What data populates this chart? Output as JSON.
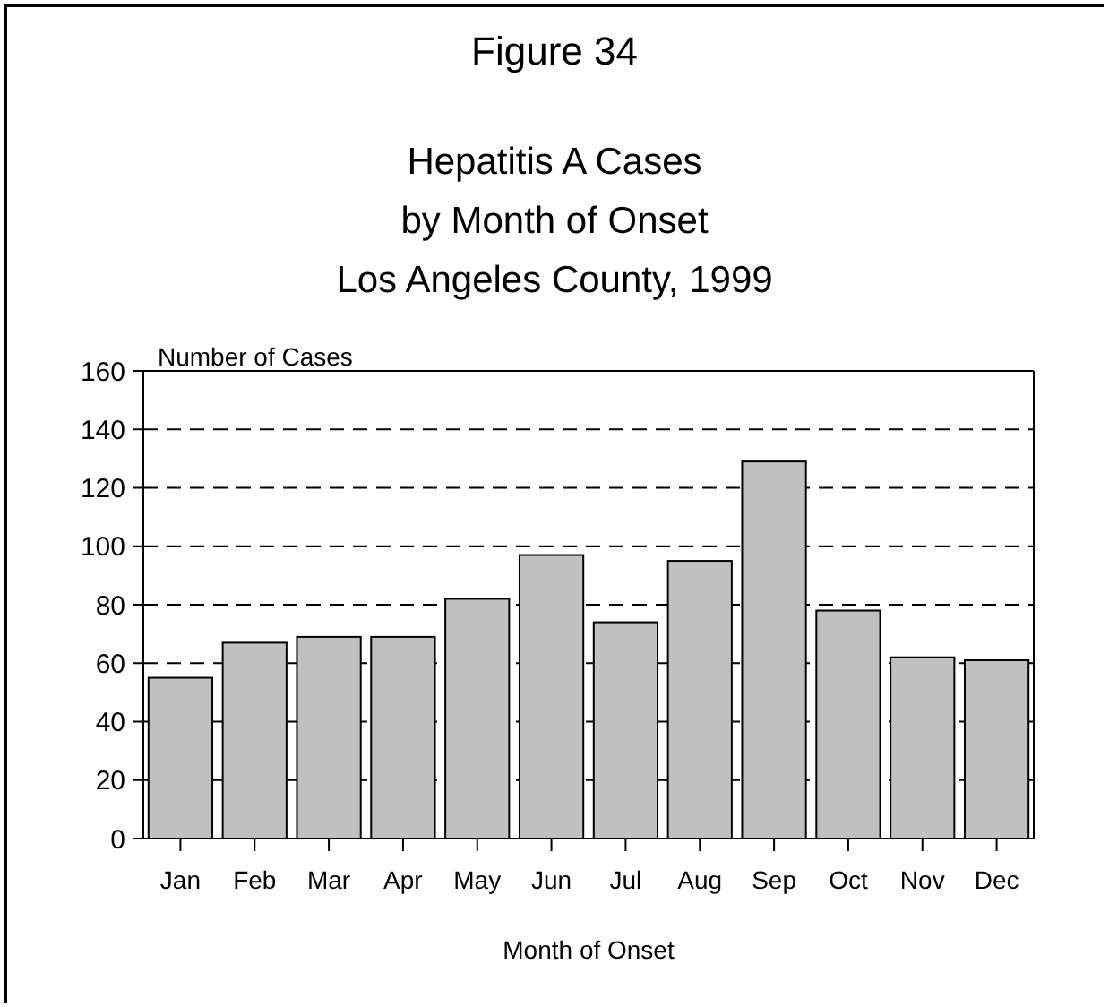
{
  "chart_data": {
    "type": "bar",
    "title": "Figure 34",
    "subtitle": "Hepatitis A Cases\nby Month of Onset\nLos Angeles County, 1999",
    "xlabel": "Month of Onset",
    "ylabel": "Number of Cases",
    "categories": [
      "Jan",
      "Feb",
      "Mar",
      "Apr",
      "May",
      "Jun",
      "Jul",
      "Aug",
      "Sep",
      "Oct",
      "Nov",
      "Dec"
    ],
    "values": [
      55,
      67,
      69,
      69,
      82,
      97,
      74,
      95,
      129,
      78,
      62,
      61
    ],
    "color": "#c0c0c0",
    "ylim": [
      0,
      160
    ],
    "yticks": [
      0,
      20,
      40,
      60,
      80,
      100,
      120,
      140,
      160
    ],
    "grid": "y",
    "line_style": "dashed"
  }
}
